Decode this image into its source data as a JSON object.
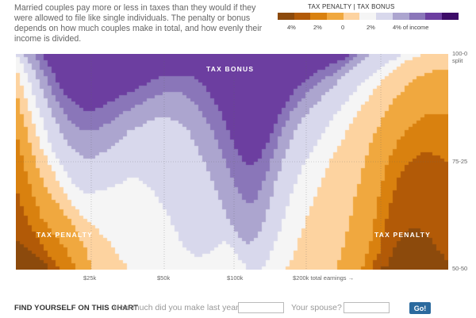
{
  "intro": "Married couples pay more or less in taxes than they would if they were allowed to file like single individuals. The penalty or bonus depends on how much couples make in total, and how evenly their income is divided.",
  "legend": {
    "title": "TAX PENALTY | TAX BONUS",
    "colors": [
      "#8c4a0c",
      "#b25a07",
      "#d9810f",
      "#f0a83f",
      "#fdd3a0",
      "#f5f5f5",
      "#d8d8ec",
      "#aca5cf",
      "#8a76b9",
      "#6c3ea0",
      "#3d0c68"
    ],
    "ticks": [
      "4%",
      "2%",
      "0",
      "2%",
      "4% of income"
    ]
  },
  "chart_data": {
    "type": "heatmap",
    "title": "",
    "x_axis": {
      "label": "total earnings",
      "ticks": [
        "$25k",
        "$50k",
        "$100k",
        "$200k"
      ]
    },
    "y_axis": {
      "ticks": [
        "100-0 split",
        "75-25",
        "50-50"
      ]
    },
    "color_scale": {
      "min": -5,
      "max": 5,
      "negative": "tax penalty",
      "positive": "tax bonus",
      "unit": "% of income"
    },
    "regions": [
      "TAX BONUS",
      "TAX PENALTY",
      "TAX PENALTY"
    ],
    "bands": {
      "levels": [
        -5,
        -4,
        -3,
        -2,
        -1,
        0,
        1,
        2,
        3,
        4,
        5
      ],
      "boundaries": {
        "x": [
          0.0,
          0.02,
          0.04,
          0.06,
          0.08,
          0.1,
          0.12,
          0.14,
          0.16,
          0.18,
          0.2,
          0.22,
          0.24,
          0.26,
          0.28,
          0.3,
          0.32,
          0.34,
          0.36,
          0.38,
          0.4,
          0.42,
          0.44,
          0.46,
          0.48,
          0.5,
          0.52,
          0.54,
          0.56,
          0.58,
          0.6,
          0.62,
          0.64,
          0.66,
          0.68,
          0.7,
          0.72,
          0.74,
          0.76,
          0.78,
          0.8,
          0.82,
          0.84,
          0.86,
          0.88,
          0.9,
          0.92,
          0.94,
          0.96,
          0.98,
          1.0
        ],
        "b5": [
          0.0,
          0.0,
          0.0,
          0.0,
          0.0,
          0.0,
          0.0,
          0.0,
          0.0,
          0.0,
          0.0,
          0.0,
          0.0,
          0.0,
          0.0,
          0.0,
          0.0,
          0.0,
          0.0,
          0.0,
          0.0,
          0.0,
          0.0,
          0.0,
          0.0,
          0.0,
          0.0,
          0.0,
          0.0,
          0.0,
          0.0,
          0.0,
          0.0,
          0.0,
          0.0,
          0.0,
          0.0,
          0.0,
          0.0,
          0.0,
          0.0,
          0.0,
          0.0,
          0.0,
          0.0,
          0.0,
          0.0,
          0.0,
          0.0,
          0.0,
          0.0
        ],
        "b4": [
          0.0,
          0.0,
          0.0,
          0.0,
          0.07,
          0.14,
          0.2,
          0.24,
          0.26,
          0.26,
          0.24,
          0.22,
          0.2,
          0.18,
          0.16,
          0.14,
          0.12,
          0.1,
          0.1,
          0.1,
          0.1,
          0.12,
          0.16,
          0.22,
          0.3,
          0.4,
          0.48,
          0.52,
          0.5,
          0.42,
          0.32,
          0.24,
          0.18,
          0.14,
          0.11,
          0.08,
          0.06,
          0.04,
          0.02,
          0.0,
          0.0,
          0.0,
          0.0,
          0.0,
          0.0,
          0.0,
          0.0,
          0.0,
          0.0,
          0.0,
          0.0
        ],
        "b3": [
          0.0,
          0.0,
          0.0,
          0.07,
          0.16,
          0.24,
          0.3,
          0.34,
          0.36,
          0.36,
          0.34,
          0.31,
          0.28,
          0.26,
          0.24,
          0.22,
          0.2,
          0.18,
          0.18,
          0.18,
          0.2,
          0.24,
          0.3,
          0.38,
          0.48,
          0.58,
          0.66,
          0.7,
          0.66,
          0.56,
          0.44,
          0.34,
          0.26,
          0.21,
          0.17,
          0.14,
          0.11,
          0.08,
          0.05,
          0.02,
          0.0,
          0.0,
          0.0,
          0.0,
          0.0,
          0.0,
          0.0,
          0.0,
          0.0,
          0.0,
          0.0
        ],
        "b2": [
          0.0,
          0.0,
          0.07,
          0.16,
          0.26,
          0.34,
          0.42,
          0.46,
          0.48,
          0.48,
          0.46,
          0.43,
          0.4,
          0.36,
          0.34,
          0.32,
          0.3,
          0.3,
          0.3,
          0.32,
          0.36,
          0.44,
          0.52,
          0.62,
          0.72,
          0.8,
          0.86,
          0.88,
          0.84,
          0.74,
          0.6,
          0.48,
          0.38,
          0.31,
          0.26,
          0.22,
          0.18,
          0.14,
          0.1,
          0.06,
          0.03,
          0.0,
          0.0,
          0.0,
          0.0,
          0.0,
          0.0,
          0.0,
          0.0,
          0.0,
          0.0
        ],
        "b1": [
          0.0,
          0.07,
          0.18,
          0.3,
          0.42,
          0.5,
          0.57,
          0.62,
          0.64,
          0.64,
          0.63,
          0.62,
          0.6,
          0.58,
          0.58,
          0.6,
          0.64,
          0.7,
          0.78,
          0.86,
          0.92,
          0.94,
          0.93,
          0.9,
          0.86,
          0.9,
          0.96,
          1.0,
          1.0,
          0.97,
          0.88,
          0.76,
          0.64,
          0.54,
          0.46,
          0.4,
          0.34,
          0.28,
          0.23,
          0.18,
          0.14,
          0.1,
          0.07,
          0.04,
          0.02,
          0.0,
          0.0,
          0.0,
          0.0,
          0.0,
          0.0
        ],
        "b0": [
          0.06,
          0.18,
          0.32,
          0.44,
          0.52,
          0.6,
          0.66,
          0.72,
          0.76,
          0.8,
          0.84,
          0.88,
          0.94,
          1.0,
          1.0,
          1.0,
          1.0,
          1.0,
          1.0,
          1.0,
          1.0,
          1.0,
          1.0,
          1.0,
          1.0,
          1.0,
          1.0,
          1.0,
          1.0,
          1.0,
          1.0,
          1.0,
          0.95,
          0.83,
          0.72,
          0.62,
          0.53,
          0.45,
          0.38,
          0.31,
          0.25,
          0.19,
          0.14,
          0.1,
          0.06,
          0.03,
          0.02,
          0.0,
          0.0,
          0.0,
          0.0
        ],
        "bm1": [
          0.18,
          0.32,
          0.46,
          0.58,
          0.66,
          0.7,
          0.76,
          0.82,
          0.9,
          1.0,
          1.0,
          1.0,
          1.0,
          1.0,
          1.0,
          1.0,
          1.0,
          1.0,
          1.0,
          1.0,
          1.0,
          1.0,
          1.0,
          1.0,
          1.0,
          1.0,
          1.0,
          1.0,
          1.0,
          1.0,
          1.0,
          1.0,
          1.0,
          1.0,
          1.0,
          1.0,
          1.0,
          1.0,
          0.88,
          0.7,
          0.55,
          0.42,
          0.33,
          0.26,
          0.2,
          0.16,
          0.12,
          0.1,
          0.08,
          0.08,
          0.08
        ],
        "bm2": [
          0.36,
          0.52,
          0.66,
          0.76,
          0.82,
          0.86,
          0.92,
          1.0,
          1.0,
          1.0,
          1.0,
          1.0,
          1.0,
          1.0,
          1.0,
          1.0,
          1.0,
          1.0,
          1.0,
          1.0,
          1.0,
          1.0,
          1.0,
          1.0,
          1.0,
          1.0,
          1.0,
          1.0,
          1.0,
          1.0,
          1.0,
          1.0,
          1.0,
          1.0,
          1.0,
          1.0,
          1.0,
          1.0,
          1.0,
          1.0,
          1.0,
          0.88,
          0.66,
          0.5,
          0.42,
          0.36,
          0.32,
          0.29,
          0.28,
          0.28,
          0.28
        ],
        "bm3": [
          0.62,
          0.74,
          0.82,
          0.88,
          0.94,
          1.0,
          1.0,
          1.0,
          1.0,
          1.0,
          1.0,
          1.0,
          1.0,
          1.0,
          1.0,
          1.0,
          1.0,
          1.0,
          1.0,
          1.0,
          1.0,
          1.0,
          1.0,
          1.0,
          1.0,
          1.0,
          1.0,
          1.0,
          1.0,
          1.0,
          1.0,
          1.0,
          1.0,
          1.0,
          1.0,
          1.0,
          1.0,
          1.0,
          1.0,
          1.0,
          1.0,
          1.0,
          0.92,
          0.74,
          0.6,
          0.52,
          0.48,
          0.46,
          0.46,
          0.48,
          0.5
        ],
        "bm4": [
          0.86,
          0.9,
          0.92,
          0.95,
          1.0,
          1.0,
          1.0,
          1.0,
          1.0,
          1.0,
          1.0,
          1.0,
          1.0,
          1.0,
          1.0,
          1.0,
          1.0,
          1.0,
          1.0,
          1.0,
          1.0,
          1.0,
          1.0,
          1.0,
          1.0,
          1.0,
          1.0,
          1.0,
          1.0,
          1.0,
          1.0,
          1.0,
          1.0,
          1.0,
          1.0,
          1.0,
          1.0,
          1.0,
          1.0,
          1.0,
          1.0,
          1.0,
          1.0,
          0.98,
          0.88,
          0.82,
          0.8,
          0.82,
          0.86,
          0.92,
          0.96
        ]
      }
    }
  },
  "labels": {
    "bonus": "TAX BONUS",
    "penalty_left": "TAX PENALTY",
    "penalty_right": "TAX PENALTY"
  },
  "finder": {
    "title": "FIND YOURSELF ON THIS CHART",
    "q1": "How much did you make last year?",
    "q2": "Your spouse?",
    "go": "Go!"
  }
}
